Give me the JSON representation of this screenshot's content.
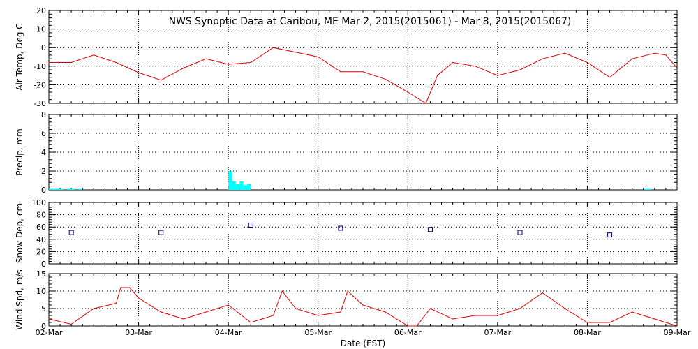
{
  "chart_data": {
    "title": "NWS Synoptic Data at Caribou, ME   Mar  2, 2015(2015061) - Mar  8, 2015(2015067)",
    "xlabel": "Date (EST)",
    "x_tick_labels": [
      "02-Mar",
      "03-Mar",
      "04-Mar",
      "05-Mar",
      "06-Mar",
      "07-Mar",
      "08-Mar",
      "09-Mar"
    ],
    "x_range_days": [
      0,
      7
    ],
    "panels": [
      {
        "type": "line",
        "ylabel": "Air Temp, Deg C",
        "ylim": [
          -30,
          20
        ],
        "yticks": [
          -30,
          -20,
          -10,
          0,
          10,
          20
        ],
        "color": "#dd0000",
        "x": [
          0,
          0.25,
          0.5,
          0.75,
          1.0,
          1.25,
          1.5,
          1.75,
          2.0,
          2.25,
          2.5,
          2.75,
          3.0,
          3.25,
          3.5,
          3.75,
          4.0,
          4.2,
          4.33,
          4.5,
          4.75,
          5.0,
          5.25,
          5.5,
          5.75,
          6.0,
          6.25,
          6.5,
          6.75,
          6.875,
          7.0
        ],
        "y": [
          -8,
          -8,
          -4,
          -8,
          -13.5,
          -17.5,
          -11,
          -6,
          -9,
          -8,
          0,
          -2.5,
          -5,
          -13,
          -13,
          -17,
          -24,
          -30,
          -15,
          -8,
          -10,
          -15,
          -12,
          -6,
          -3,
          -8,
          -16,
          -6,
          -3,
          -4,
          -11
        ]
      },
      {
        "type": "bar",
        "ylabel": "Precip, mm",
        "ylim": [
          0,
          8
        ],
        "yticks": [
          0,
          2,
          4,
          6,
          8
        ],
        "color": "#00ffff",
        "bars": [
          {
            "start": 0.0,
            "end": 0.16,
            "value": 0.1
          },
          {
            "start": 0.2,
            "end": 0.29,
            "value": 0.1
          },
          {
            "start": 0.33,
            "end": 0.37,
            "value": 0.1
          },
          {
            "start": 2.0,
            "end": 2.042,
            "value": 2.0
          },
          {
            "start": 2.042,
            "end": 2.083,
            "value": 0.9
          },
          {
            "start": 2.083,
            "end": 2.125,
            "value": 0.6
          },
          {
            "start": 2.125,
            "end": 2.167,
            "value": 0.9
          },
          {
            "start": 2.167,
            "end": 2.208,
            "value": 0.5
          },
          {
            "start": 2.208,
            "end": 2.25,
            "value": 0.6
          },
          {
            "start": 6.63,
            "end": 6.71,
            "value": 0.1
          }
        ]
      },
      {
        "type": "scatter",
        "ylabel": "Snow Dep, cm",
        "ylim": [
          0,
          100
        ],
        "yticks": [
          0,
          20,
          40,
          60,
          80,
          100
        ],
        "color": "#000080",
        "x": [
          0.25,
          1.25,
          2.25,
          3.25,
          4.25,
          5.25,
          6.25
        ],
        "y": [
          51,
          51,
          63,
          58,
          56,
          51,
          47
        ]
      },
      {
        "type": "line",
        "ylabel": "Wind Spd, m/s",
        "ylim": [
          0,
          15
        ],
        "yticks": [
          0,
          5,
          10,
          15
        ],
        "color": "#dd0000",
        "x": [
          0,
          0.25,
          0.5,
          0.75,
          0.8,
          0.9,
          1.0,
          1.25,
          1.5,
          1.75,
          2.0,
          2.25,
          2.5,
          2.6,
          2.75,
          3.0,
          3.25,
          3.33,
          3.5,
          3.75,
          4.0,
          4.1,
          4.25,
          4.5,
          4.75,
          5.0,
          5.25,
          5.5,
          5.75,
          6.0,
          6.25,
          6.5,
          6.75,
          7.0
        ],
        "y": [
          2,
          0.5,
          5,
          6.5,
          11,
          11,
          8,
          4,
          2,
          4,
          6,
          1,
          3,
          10,
          5,
          3,
          4,
          10,
          6,
          4,
          0,
          0,
          5,
          2,
          3,
          3,
          5,
          9.5,
          5,
          1,
          1,
          4,
          2,
          0
        ]
      }
    ]
  }
}
